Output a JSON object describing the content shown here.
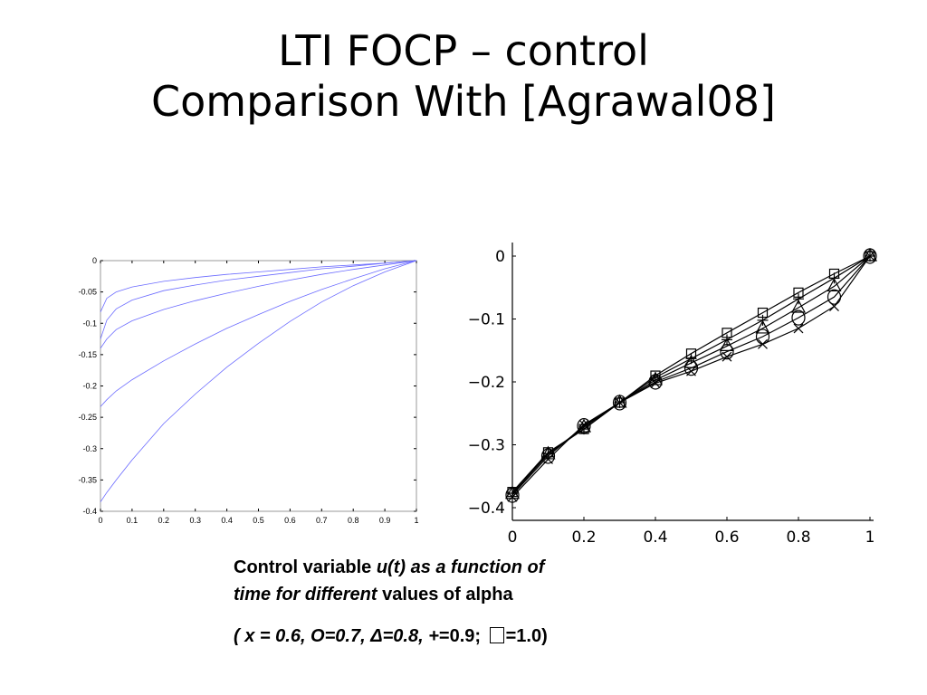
{
  "slide": {
    "title_line1": "LTI FOCP – control",
    "title_line2": "Comparison With [Agrawal08]"
  },
  "caption": {
    "part1": "Control variable ",
    "part2": "u(t) as a function of",
    "part3": "time for different",
    "part4": " values of alpha"
  },
  "legend_text": {
    "open": "( ",
    "x_item": "x = 0.6,  O=0.7, Δ=0.8, +",
    "rest1": "=0.9;  ",
    "rest2": "=1.0)"
  },
  "colors": {
    "left_lines": "#6b6bff",
    "right_lines": "#000000",
    "axis": "#000000"
  },
  "chart_data": [
    {
      "type": "line",
      "title": "",
      "xlabel": "",
      "ylabel": "",
      "xlim": [
        0,
        1
      ],
      "ylim": [
        -0.4,
        0
      ],
      "xticks": [
        "0",
        "0.1",
        "0.2",
        "0.3",
        "0.4",
        "0.5",
        "0.6",
        "0.7",
        "0.8",
        "0.9",
        "1"
      ],
      "yticks": [
        "0",
        "-0.05",
        "-0.1",
        "-0.15",
        "-0.2",
        "-0.25",
        "-0.3",
        "-0.35",
        "-0.4"
      ],
      "grid": false,
      "x": [
        0,
        0.02,
        0.05,
        0.1,
        0.2,
        0.3,
        0.4,
        0.5,
        0.6,
        0.7,
        0.8,
        0.9,
        1.0
      ],
      "series": [
        {
          "values": [
            -0.082,
            -0.06,
            -0.05,
            -0.042,
            -0.033,
            -0.027,
            -0.022,
            -0.018,
            -0.014,
            -0.01,
            -0.007,
            -0.004,
            0
          ]
        },
        {
          "values": [
            -0.125,
            -0.095,
            -0.077,
            -0.063,
            -0.048,
            -0.039,
            -0.031,
            -0.025,
            -0.019,
            -0.013,
            -0.009,
            -0.004,
            0
          ]
        },
        {
          "values": [
            -0.14,
            -0.125,
            -0.11,
            -0.096,
            -0.078,
            -0.064,
            -0.052,
            -0.041,
            -0.031,
            -0.022,
            -0.014,
            -0.007,
            0
          ]
        },
        {
          "values": [
            -0.233,
            -0.222,
            -0.208,
            -0.19,
            -0.16,
            -0.133,
            -0.108,
            -0.086,
            -0.065,
            -0.046,
            -0.029,
            -0.013,
            0
          ]
        },
        {
          "values": [
            -0.385,
            -0.37,
            -0.35,
            -0.318,
            -0.26,
            -0.213,
            -0.17,
            -0.132,
            -0.097,
            -0.066,
            -0.04,
            -0.018,
            0
          ]
        }
      ]
    },
    {
      "type": "line",
      "title": "",
      "xlabel": "",
      "ylabel": "",
      "xlim": [
        0,
        1
      ],
      "ylim": [
        -0.4,
        0
      ],
      "xticks": [
        "0",
        "0.2",
        "0.4",
        "0.6",
        "0.8",
        "1"
      ],
      "yticks": [
        "0",
        "−0.1",
        "−0.2",
        "−0.3",
        "−0.4"
      ],
      "grid": false,
      "x": [
        0,
        0.1,
        0.2,
        0.3,
        0.4,
        0.5,
        0.6,
        0.7,
        0.8,
        0.9,
        1.0
      ],
      "series": [
        {
          "name": "x = 0.6",
          "marker": "x",
          "values": [
            -0.383,
            -0.323,
            -0.268,
            -0.233,
            -0.202,
            -0.183,
            -0.16,
            -0.14,
            -0.115,
            -0.08,
            0
          ]
        },
        {
          "name": "O=0.7",
          "marker": "o",
          "values": [
            -0.38,
            -0.318,
            -0.27,
            -0.233,
            -0.2,
            -0.178,
            -0.152,
            -0.128,
            -0.098,
            -0.065,
            0
          ]
        },
        {
          "name": "Δ=0.8",
          "marker": "triangle",
          "values": [
            -0.378,
            -0.315,
            -0.272,
            -0.233,
            -0.197,
            -0.17,
            -0.143,
            -0.115,
            -0.082,
            -0.048,
            0
          ]
        },
        {
          "name": "+=0.9",
          "marker": "+",
          "values": [
            -0.377,
            -0.314,
            -0.275,
            -0.233,
            -0.193,
            -0.163,
            -0.133,
            -0.102,
            -0.068,
            -0.035,
            0
          ]
        },
        {
          "name": "=1.0",
          "marker": "square",
          "values": [
            -0.375,
            -0.312,
            -0.275,
            -0.233,
            -0.19,
            -0.155,
            -0.122,
            -0.09,
            -0.058,
            -0.028,
            0
          ]
        }
      ]
    }
  ]
}
